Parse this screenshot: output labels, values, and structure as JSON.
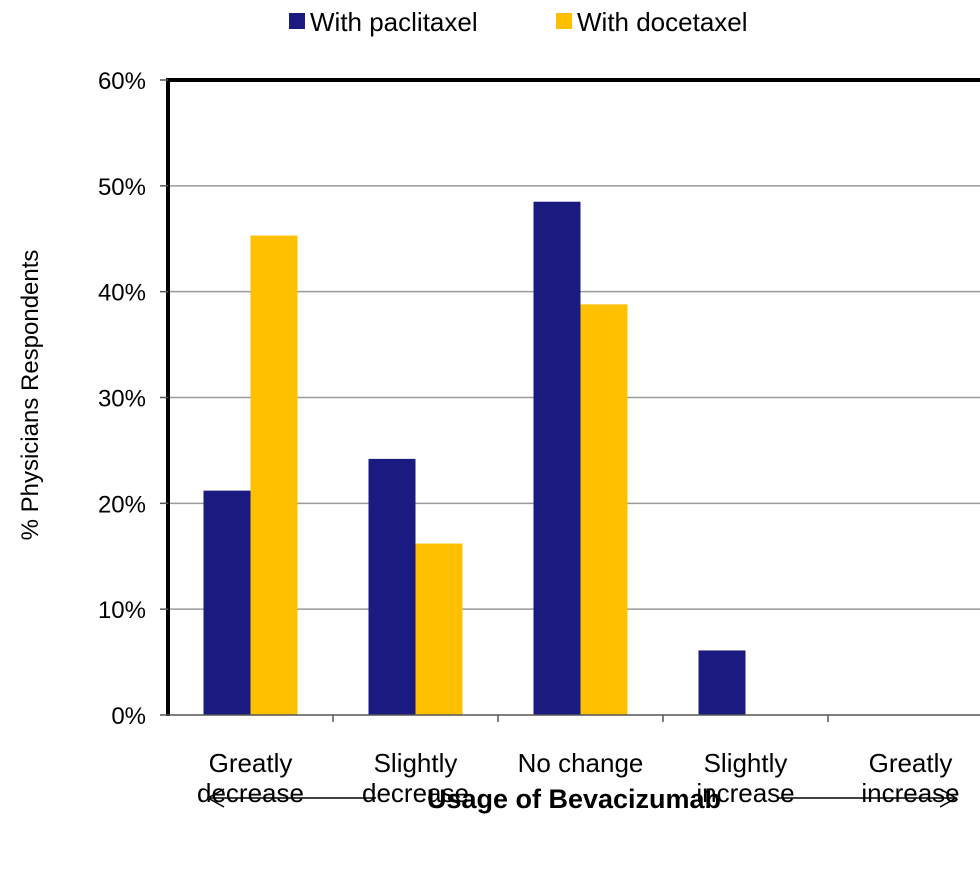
{
  "chart_data": {
    "type": "bar",
    "categories": [
      [
        "Greatly",
        "decrease"
      ],
      [
        "Slightly",
        "decrease"
      ],
      [
        "No change"
      ],
      [
        "Slightly",
        "increase"
      ],
      [
        "Greatly",
        "increase"
      ]
    ],
    "series": [
      {
        "name": "With paclitaxel",
        "color": "#1a1a80",
        "values": [
          21.2,
          24.2,
          48.5,
          6.1,
          0
        ]
      },
      {
        "name": "With docetaxel",
        "color": "#ffc000",
        "values": [
          45.3,
          16.2,
          38.8,
          0,
          0
        ]
      }
    ],
    "ylim": [
      0,
      60
    ],
    "yticks": [
      0,
      10,
      20,
      30,
      40,
      50,
      60
    ],
    "ytick_labels": [
      "0%",
      "10%",
      "20%",
      "30%",
      "40%",
      "50%",
      "60%"
    ],
    "ylabel": "% Physicians Respondents",
    "xlabel": "Usage of Bevacizumab",
    "legend_position": "top",
    "grid": true
  }
}
